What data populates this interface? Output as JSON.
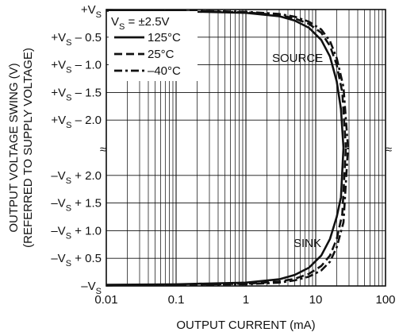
{
  "chart_data": {
    "type": "line",
    "xlabel": "OUTPUT CURRENT (mA)",
    "ylabel_line1": "OUTPUT VOLTAGE SWING (V)",
    "ylabel_line2": "(REFERRED TO SUPPLY VOLTAGE)",
    "x_scale": "log",
    "xlim": [
      0.01,
      100
    ],
    "x_ticks": [
      {
        "value": 0.01,
        "label": "0.01"
      },
      {
        "value": 0.1,
        "label": "0.1"
      },
      {
        "value": 1,
        "label": "1"
      },
      {
        "value": 10,
        "label": "10"
      },
      {
        "value": 100,
        "label": "100"
      }
    ],
    "y_ticks_top": [
      {
        "main": "+V",
        "sub": "S",
        "rest": "",
        "value": 0
      },
      {
        "main": "+V",
        "sub": "S",
        "rest": " – 0.5",
        "value": -0.5
      },
      {
        "main": "+V",
        "sub": "S",
        "rest": " – 1.0",
        "value": -1.0
      },
      {
        "main": "+V",
        "sub": "S",
        "rest": " – 1.5",
        "value": -1.5
      },
      {
        "main": "+V",
        "sub": "S",
        "rest": " – 2.0",
        "value": -2.0
      }
    ],
    "y_ticks_bottom": [
      {
        "main": "–V",
        "sub": "S",
        "rest": " + 2.0",
        "value": 2.0
      },
      {
        "main": "–V",
        "sub": "S",
        "rest": " + 1.5",
        "value": 1.5
      },
      {
        "main": "–V",
        "sub": "S",
        "rest": " + 1.0",
        "value": 1.0
      },
      {
        "main": "–V",
        "sub": "S",
        "rest": " + 0.5",
        "value": 0.5
      },
      {
        "main": "–V",
        "sub": "S",
        "rest": "",
        "value": 0
      }
    ],
    "axis_break_symbol": "≈",
    "grid": true,
    "legend": {
      "placement": "top-left",
      "header_main": "V",
      "header_sub": "S",
      "header_rest": " = ±2.5V",
      "entries": [
        {
          "label": "125°C",
          "dash": "solid"
        },
        {
          "label": "25°C",
          "dash": "dashed"
        },
        {
          "label": "–40°C",
          "dash": "dashdot"
        }
      ]
    },
    "annotations": {
      "source": "SOURCE",
      "sink": "SINK"
    },
    "series": [
      {
        "label": "125°C",
        "dash": "solid",
        "source": [
          [
            0.01,
            -0.02
          ],
          [
            0.1,
            -0.03
          ],
          [
            1,
            -0.06
          ],
          [
            3,
            -0.12
          ],
          [
            5,
            -0.2
          ],
          [
            8,
            -0.33
          ],
          [
            12,
            -0.55
          ],
          [
            16,
            -0.85
          ],
          [
            20,
            -1.3
          ],
          [
            23,
            -1.8
          ],
          [
            25,
            -2.5
          ]
        ],
        "sink": [
          [
            0.01,
            0.02
          ],
          [
            0.1,
            0.03
          ],
          [
            1,
            0.06
          ],
          [
            3,
            0.12
          ],
          [
            5,
            0.2
          ],
          [
            8,
            0.33
          ],
          [
            12,
            0.55
          ],
          [
            16,
            0.85
          ],
          [
            20,
            1.25
          ],
          [
            23,
            1.6
          ],
          [
            25,
            2.5
          ]
        ]
      },
      {
        "label": "25°C",
        "dash": "dashed",
        "source": [
          [
            0.01,
            -0.01
          ],
          [
            0.1,
            -0.02
          ],
          [
            1,
            -0.05
          ],
          [
            3,
            -0.1
          ],
          [
            5,
            -0.16
          ],
          [
            8,
            -0.26
          ],
          [
            12,
            -0.42
          ],
          [
            16,
            -0.66
          ],
          [
            20,
            -1.0
          ],
          [
            24,
            -1.5
          ],
          [
            27,
            -2.5
          ]
        ],
        "sink": [
          [
            0.01,
            0.01
          ],
          [
            0.1,
            0.02
          ],
          [
            1,
            0.04
          ],
          [
            3,
            0.08
          ],
          [
            5,
            0.13
          ],
          [
            8,
            0.22
          ],
          [
            12,
            0.36
          ],
          [
            16,
            0.55
          ],
          [
            20,
            0.85
          ],
          [
            24,
            1.3
          ],
          [
            27,
            2.5
          ]
        ]
      },
      {
        "label": "–40°C",
        "dash": "dashdot",
        "source": [
          [
            0.01,
            -0.01
          ],
          [
            0.1,
            -0.02
          ],
          [
            1,
            -0.04
          ],
          [
            3,
            -0.08
          ],
          [
            5,
            -0.13
          ],
          [
            8,
            -0.22
          ],
          [
            12,
            -0.36
          ],
          [
            16,
            -0.57
          ],
          [
            20,
            -0.88
          ],
          [
            25,
            -1.4
          ],
          [
            29,
            -2.5
          ]
        ],
        "sink": [
          [
            0.01,
            0.01
          ],
          [
            0.1,
            0.02
          ],
          [
            1,
            0.03
          ],
          [
            3,
            0.06
          ],
          [
            5,
            0.1
          ],
          [
            8,
            0.17
          ],
          [
            12,
            0.28
          ],
          [
            16,
            0.44
          ],
          [
            20,
            0.7
          ],
          [
            25,
            1.15
          ],
          [
            29,
            2.5
          ]
        ]
      }
    ]
  }
}
